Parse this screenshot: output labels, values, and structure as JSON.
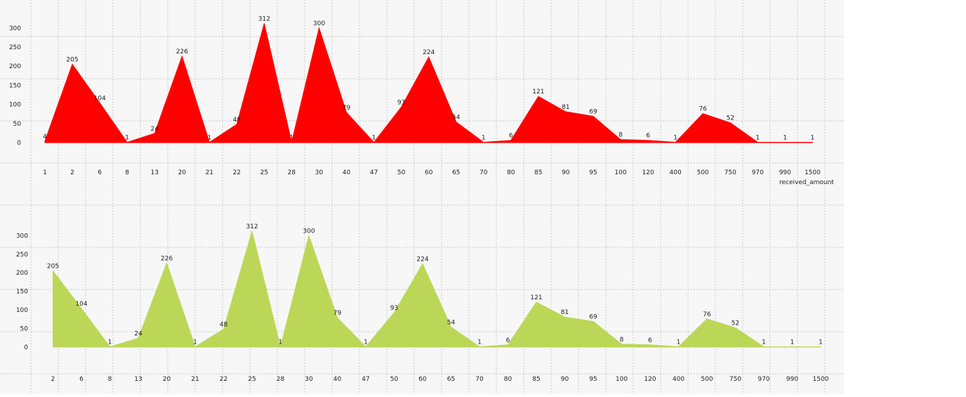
{
  "chart_data": [
    {
      "type": "area",
      "color": "#ff0000",
      "categories": [
        "1",
        "2",
        "6",
        "8",
        "13",
        "20",
        "21",
        "22",
        "25",
        "28",
        "30",
        "40",
        "47",
        "50",
        "60",
        "65",
        "70",
        "80",
        "85",
        "90",
        "95",
        "100",
        "120",
        "400",
        "500",
        "750",
        "970",
        "990",
        "1500"
      ],
      "values": [
        4,
        205,
        104,
        1,
        24,
        226,
        1,
        48,
        312,
        1,
        300,
        79,
        1,
        93,
        224,
        54,
        1,
        6,
        121,
        81,
        69,
        8,
        6,
        1,
        76,
        52,
        1,
        1,
        1
      ],
      "y_ticks": [
        0,
        50,
        100,
        150,
        200,
        250,
        300
      ],
      "ylim": [
        0,
        300
      ],
      "xlabel": "received_amount",
      "grid": true
    },
    {
      "type": "area",
      "color": "#bcd757",
      "categories": [
        "2",
        "6",
        "8",
        "13",
        "20",
        "21",
        "22",
        "25",
        "28",
        "30",
        "40",
        "47",
        "50",
        "60",
        "65",
        "70",
        "80",
        "85",
        "90",
        "95",
        "100",
        "120",
        "400",
        "500",
        "750",
        "970",
        "990",
        "1500"
      ],
      "values": [
        205,
        104,
        1,
        24,
        226,
        1,
        48,
        312,
        1,
        300,
        79,
        1,
        93,
        224,
        54,
        1,
        6,
        121,
        81,
        69,
        8,
        6,
        1,
        76,
        52,
        1,
        1,
        1
      ],
      "y_ticks": [
        0,
        50,
        100,
        150,
        200,
        250,
        300
      ],
      "ylim": [
        0,
        300
      ],
      "xlabel": "",
      "grid": true
    }
  ]
}
